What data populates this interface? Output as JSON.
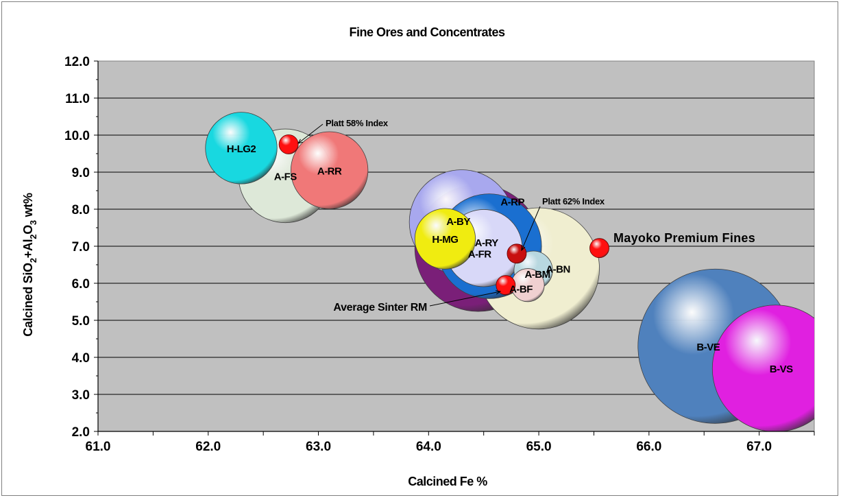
{
  "chart_data": {
    "type": "bubble",
    "title": "Fine Ores and Concentrates",
    "xlabel": "Calcined Fe %",
    "ylabel_parts": [
      "Calcined SiO",
      "2",
      "+Al",
      "2",
      "O",
      "3",
      " wt%"
    ],
    "xlim": [
      61.0,
      67.5
    ],
    "ylim": [
      2.0,
      12.0
    ],
    "x_ticks": [
      "61.0",
      "62.0",
      "63.0",
      "64.0",
      "65.0",
      "66.0",
      "67.0"
    ],
    "y_ticks": [
      "2.0",
      "3.0",
      "4.0",
      "5.0",
      "6.0",
      "7.0",
      "8.0",
      "9.0",
      "10.0",
      "11.0",
      "12.0"
    ],
    "grid": "horizontal",
    "plot_background": "#c0c0c0",
    "bubbles": [
      {
        "label": "A-RP",
        "x": 64.45,
        "y": 6.95,
        "size": 1.15,
        "color": "#7a1f78"
      },
      {
        "label": "B-VE",
        "x": 66.6,
        "y": 4.3,
        "size": 1.4,
        "color": "#4f81bd"
      },
      {
        "label": "B-VS",
        "x": 67.15,
        "y": 3.7,
        "size": 1.15,
        "color": "#e020e0"
      },
      {
        "label": "A-BN",
        "x": 65.0,
        "y": 6.4,
        "size": 1.1,
        "color": "#f0eed0"
      },
      {
        "label": "A-BY",
        "x": 64.3,
        "y": 7.65,
        "size": 0.95,
        "color": "#a8a8ee"
      },
      {
        "label": "A-RY",
        "x": 64.55,
        "y": 7.0,
        "size": 0.95,
        "color": "#1a6fd0"
      },
      {
        "label": "A-FR",
        "x": 64.5,
        "y": 6.95,
        "size": 0.7,
        "color": "#d8d8f8"
      },
      {
        "label": "A-FS",
        "x": 62.7,
        "y": 8.9,
        "size": 0.85,
        "color": "#dde8d8"
      },
      {
        "label": "A-RR",
        "x": 63.1,
        "y": 9.05,
        "size": 0.7,
        "color": "#f07878"
      },
      {
        "label": "H-LG2",
        "x": 62.3,
        "y": 9.65,
        "size": 0.65,
        "color": "#18d8e0"
      },
      {
        "label": "H-MG",
        "x": 64.15,
        "y": 7.2,
        "size": 0.55,
        "color": "#f0ec10"
      },
      {
        "label": "A-BM",
        "x": 64.95,
        "y": 6.35,
        "size": 0.35,
        "color": "#b8d8e0"
      },
      {
        "label": "A-BF",
        "x": 64.9,
        "y": 5.95,
        "size": 0.3,
        "color": "#f0d0d0"
      }
    ],
    "markers": [
      {
        "label": "Platt 58% Index",
        "x": 62.73,
        "y": 9.75,
        "color": "#ff1010"
      },
      {
        "label": "Platt 62% Index",
        "x": 64.8,
        "y": 6.8,
        "color": "#c81010"
      },
      {
        "label": "Average Sinter RM",
        "x": 64.7,
        "y": 5.95,
        "color": "#ff1010"
      },
      {
        "label": "Mayoko Premium Fines",
        "x": 65.55,
        "y": 6.95,
        "color": "#ff1010"
      }
    ]
  }
}
